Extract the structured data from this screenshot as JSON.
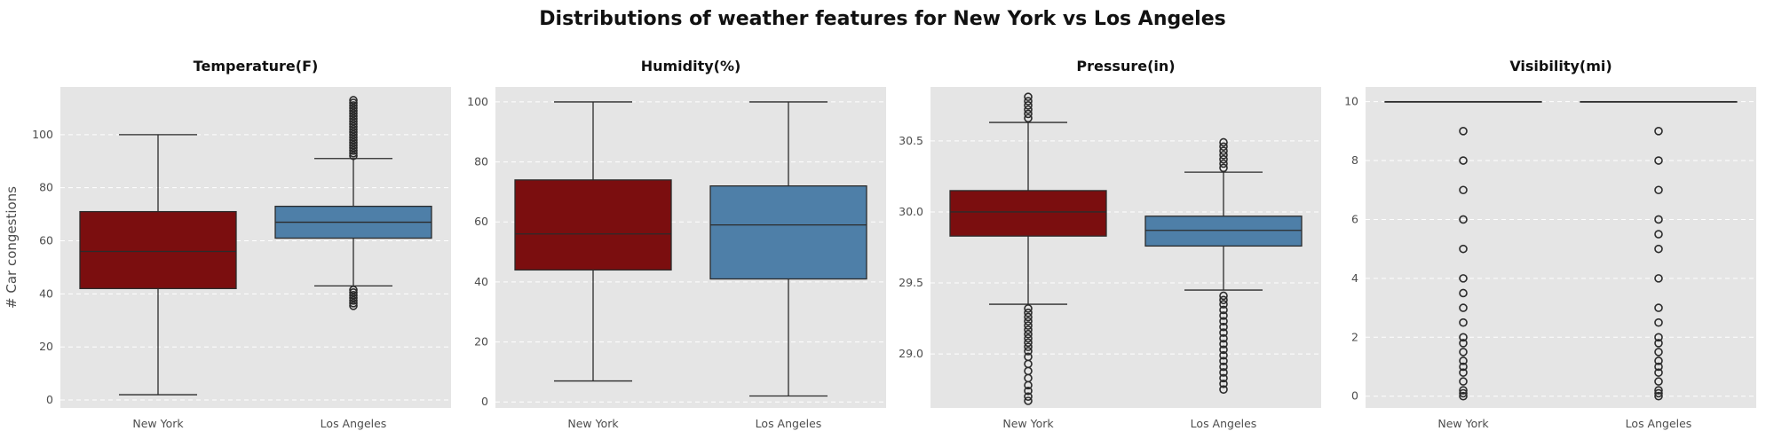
{
  "suptitle": "Distributions of weather features for New York vs Los Angeles",
  "colors": {
    "panel_bg": "#e5e5e5",
    "grid": "#ffffff",
    "new_york": "#7b0e0f",
    "los_angeles": "#4e7fa8",
    "line": "#2b2b2b"
  },
  "chart_data": [
    {
      "type": "box",
      "title": "Temperature(F)",
      "ylabel": "# Car congestions",
      "categories": [
        "New York",
        "Los Angeles"
      ],
      "ylim": [
        -3,
        118
      ],
      "yticks": [
        0,
        20,
        40,
        60,
        80,
        100
      ],
      "grid": true,
      "series": [
        {
          "category": "New York",
          "color": "#7b0e0f",
          "whisker_low": 2,
          "q1": 42,
          "median": 56,
          "q3": 71,
          "whisker_high": 100,
          "outliers_low": [],
          "outliers_high": []
        },
        {
          "category": "Los Angeles",
          "color": "#4e7fa8",
          "whisker_low": 43,
          "q1": 61,
          "median": 67,
          "q3": 73,
          "whisker_high": 91,
          "outliers_low": [
            35.5,
            36.5,
            37.5,
            38.5,
            39.5,
            40.5,
            41.5
          ],
          "outliers_high": [
            92,
            93,
            94,
            95,
            96,
            97,
            98,
            99,
            100,
            101,
            102,
            103,
            104,
            105,
            106,
            107,
            108,
            109,
            110,
            111,
            112,
            113
          ]
        }
      ]
    },
    {
      "type": "box",
      "title": "Humidity(%)",
      "categories": [
        "New York",
        "Los Angeles"
      ],
      "ylim": [
        -2,
        105
      ],
      "yticks": [
        0,
        20,
        40,
        60,
        80,
        100
      ],
      "grid": true,
      "series": [
        {
          "category": "New York",
          "color": "#7b0e0f",
          "whisker_low": 7,
          "q1": 44,
          "median": 56,
          "q3": 74,
          "whisker_high": 100,
          "outliers_low": [],
          "outliers_high": []
        },
        {
          "category": "Los Angeles",
          "color": "#4e7fa8",
          "whisker_low": 2,
          "q1": 41,
          "median": 59,
          "q3": 72,
          "whisker_high": 100,
          "outliers_low": [],
          "outliers_high": []
        }
      ]
    },
    {
      "type": "box",
      "title": "Pressure(in)",
      "categories": [
        "New York",
        "Los Angeles"
      ],
      "ylim": [
        28.62,
        30.88
      ],
      "yticks": [
        29.0,
        29.5,
        30.0,
        30.5
      ],
      "ytick_labels": [
        "29.0",
        "29.5",
        "30.0",
        "30.5"
      ],
      "grid": true,
      "series": [
        {
          "category": "New York",
          "color": "#7b0e0f",
          "whisker_low": 29.35,
          "q1": 29.83,
          "median": 30.0,
          "q3": 30.15,
          "whisker_high": 30.63,
          "outliers_low": [
            28.67,
            28.7,
            28.74,
            28.78,
            28.83,
            28.88,
            28.93,
            28.98,
            29.02,
            29.05,
            29.08,
            29.11,
            29.14,
            29.17,
            29.2,
            29.23,
            29.26,
            29.29,
            29.32
          ],
          "outliers_high": [
            30.66,
            30.69,
            30.72,
            30.75,
            30.78,
            30.81
          ]
        },
        {
          "category": "Los Angeles",
          "color": "#4e7fa8",
          "whisker_low": 29.45,
          "q1": 29.76,
          "median": 29.87,
          "q3": 29.97,
          "whisker_high": 30.28,
          "outliers_low": [
            28.75,
            28.79,
            28.83,
            28.87,
            28.91,
            28.95,
            28.99,
            29.03,
            29.07,
            29.11,
            29.15,
            29.19,
            29.23,
            29.27,
            29.31,
            29.35,
            29.38,
            29.41
          ],
          "outliers_high": [
            30.31,
            30.34,
            30.37,
            30.4,
            30.43,
            30.46,
            30.49
          ]
        }
      ]
    },
    {
      "type": "box",
      "title": "Visibility(mi)",
      "categories": [
        "New York",
        "Los Angeles"
      ],
      "ylim": [
        -0.4,
        10.5
      ],
      "yticks": [
        0,
        2,
        4,
        6,
        8,
        10
      ],
      "grid": true,
      "series": [
        {
          "category": "New York",
          "color": "#7b0e0f",
          "whisker_low": 10,
          "q1": 10,
          "median": 10,
          "q3": 10,
          "whisker_high": 10,
          "outliers_low": [
            0,
            0.1,
            0.2,
            0.5,
            0.8,
            1,
            1.2,
            1.5,
            1.8,
            2,
            2.5,
            3,
            3.5,
            4,
            5,
            6,
            7,
            8,
            9
          ],
          "outliers_high": []
        },
        {
          "category": "Los Angeles",
          "color": "#4e7fa8",
          "whisker_low": 10,
          "q1": 10,
          "median": 10,
          "q3": 10,
          "whisker_high": 10,
          "outliers_low": [
            0,
            0.1,
            0.2,
            0.5,
            0.8,
            1,
            1.2,
            1.5,
            1.8,
            2,
            2.5,
            3,
            4,
            5,
            5.5,
            6,
            7,
            8,
            9
          ],
          "outliers_high": []
        }
      ]
    }
  ]
}
